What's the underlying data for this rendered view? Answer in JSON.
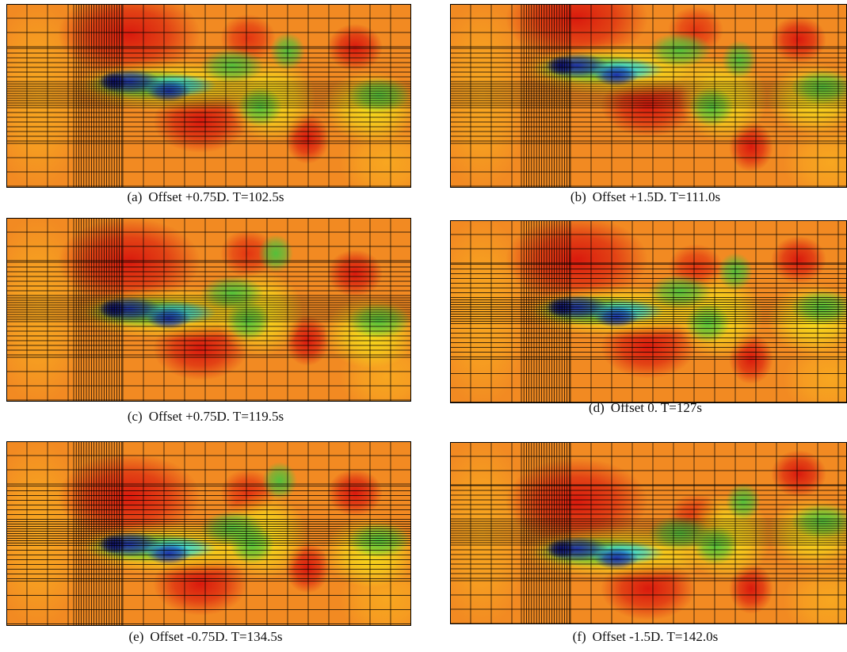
{
  "panels": [
    {
      "label": "(a)",
      "caption": "Offset +0.75D. T=102.5s"
    },
    {
      "label": "(b)",
      "caption": "Offset +1.5D. T=111.0s"
    },
    {
      "label": "(c)",
      "caption": "Offset +0.75D. T=119.5s"
    },
    {
      "label": "(d)",
      "caption": "Offset 0. T=127s"
    },
    {
      "label": "(e)",
      "caption": "Offset -0.75D. T=134.5s"
    },
    {
      "label": "(f)",
      "caption": "Offset -1.5D. T=142.0s"
    }
  ]
}
